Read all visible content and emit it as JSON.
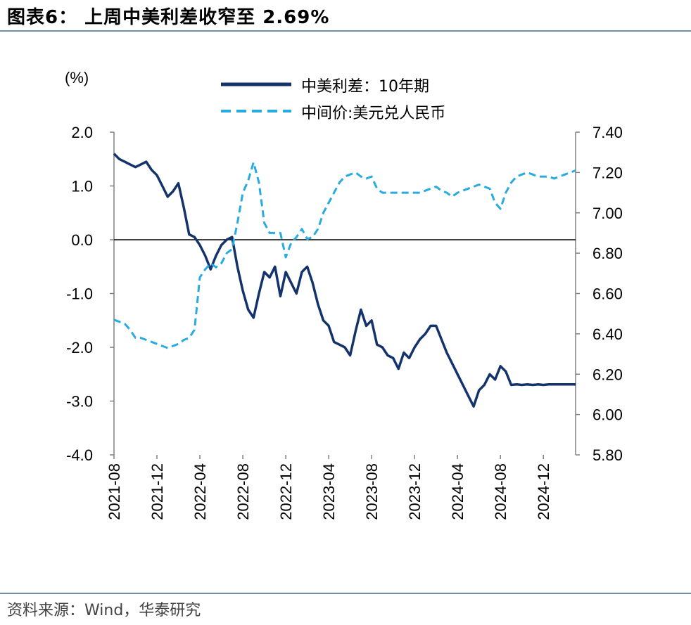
{
  "header": {
    "title": "图表6：  上周中美利差收窄至 2.69%"
  },
  "footer": {
    "source": "资料来源：Wind，华泰研究"
  },
  "chart_data": {
    "type": "line",
    "title": "上周中美利差收窄至 2.69%",
    "left_axis": {
      "unit_label": "(%)",
      "ylim": [
        -4.0,
        2.0
      ],
      "ticks": [
        "2.0",
        "1.0",
        "0.0",
        "-1.0",
        "-2.0",
        "-3.0",
        "-4.0"
      ],
      "tick_values": [
        2.0,
        1.0,
        0.0,
        -1.0,
        -2.0,
        -3.0,
        -4.0
      ]
    },
    "right_axis": {
      "ylim": [
        5.8,
        7.4
      ],
      "ticks": [
        "7.40",
        "7.20",
        "7.00",
        "6.80",
        "6.60",
        "6.40",
        "6.20",
        "6.00",
        "5.80"
      ],
      "tick_values": [
        7.4,
        7.2,
        7.0,
        6.8,
        6.6,
        6.4,
        6.2,
        6.0,
        5.8
      ]
    },
    "x_axis": {
      "range_months": [
        0,
        43
      ],
      "ticks": [
        "2021-08",
        "2021-12",
        "2022-04",
        "2022-08",
        "2022-12",
        "2023-04",
        "2023-08",
        "2023-12",
        "2024-04",
        "2024-08",
        "2024-12"
      ],
      "tick_months": [
        0,
        4,
        8,
        12,
        16,
        20,
        24,
        28,
        32,
        36,
        40
      ]
    },
    "legend": {
      "placement": "top-center",
      "items": [
        "中美利差：10年期",
        "中间价:美元兑人民币"
      ]
    },
    "series": [
      {
        "name": "中美利差：10年期",
        "axis": "left",
        "color": "#15336b",
        "style": "solid",
        "x": [
          0,
          0.5,
          1,
          1.5,
          2,
          2.5,
          3,
          3.5,
          4,
          4.5,
          5,
          5.5,
          6,
          6.5,
          7,
          7.5,
          8,
          8.5,
          9,
          9.5,
          10,
          10.5,
          11,
          11.5,
          12,
          12.5,
          13,
          13.5,
          14,
          14.5,
          15,
          15.5,
          16,
          16.5,
          17,
          17.5,
          18,
          18.5,
          19,
          19.5,
          20,
          20.5,
          21,
          21.5,
          22,
          22.5,
          23,
          23.5,
          24,
          24.5,
          25,
          25.5,
          26,
          26.5,
          27,
          27.5,
          28,
          28.5,
          29,
          29.5,
          30,
          30.5,
          31,
          31.5,
          32,
          32.5,
          33,
          33.5,
          34,
          34.5,
          35,
          35.5,
          36,
          36.5,
          37,
          37.5,
          38,
          38.5,
          39,
          39.5,
          40,
          40.5,
          41,
          41.5,
          42,
          42.5,
          43
        ],
        "values": [
          1.6,
          1.5,
          1.45,
          1.4,
          1.35,
          1.4,
          1.45,
          1.3,
          1.2,
          1.0,
          0.8,
          0.9,
          1.05,
          0.6,
          0.1,
          0.05,
          -0.1,
          -0.3,
          -0.55,
          -0.3,
          -0.1,
          0.0,
          0.05,
          -0.5,
          -0.95,
          -1.3,
          -1.45,
          -1.0,
          -0.6,
          -0.7,
          -0.5,
          -1.05,
          -0.6,
          -0.8,
          -1.0,
          -0.6,
          -0.5,
          -0.8,
          -1.2,
          -1.5,
          -1.6,
          -1.9,
          -1.95,
          -2.0,
          -2.15,
          -1.7,
          -1.3,
          -1.6,
          -1.5,
          -1.95,
          -2.0,
          -2.15,
          -2.2,
          -2.4,
          -2.1,
          -2.2,
          -2.0,
          -1.85,
          -1.75,
          -1.6,
          -1.6,
          -1.85,
          -2.1,
          -2.3,
          -2.5,
          -2.7,
          -2.9,
          -3.1,
          -2.8,
          -2.7,
          -2.5,
          -2.6,
          -2.35,
          -2.45,
          -2.7,
          -2.69,
          -2.7,
          -2.69,
          -2.7,
          -2.69,
          -2.7,
          -2.69,
          -2.69,
          -2.69,
          -2.69,
          -2.69,
          -2.69
        ]
      },
      {
        "name": "中间价:美元兑人民币",
        "axis": "right",
        "color": "#29abe2",
        "style": "dashed",
        "x": [
          0,
          0.5,
          1,
          1.5,
          2,
          2.5,
          3,
          3.5,
          4,
          4.5,
          5,
          5.5,
          6,
          6.5,
          7,
          7.5,
          8,
          8.5,
          9,
          9.5,
          10,
          10.5,
          11,
          11.5,
          12,
          12.5,
          13,
          13.5,
          14,
          14.5,
          15,
          15.5,
          16,
          16.5,
          17,
          17.5,
          18,
          18.5,
          19,
          19.5,
          20,
          20.5,
          21,
          21.5,
          22,
          22.5,
          23,
          23.5,
          24,
          24.5,
          25,
          25.5,
          26,
          26.5,
          27,
          27.5,
          28,
          28.5,
          29,
          29.5,
          30,
          30.5,
          31,
          31.5,
          32,
          32.5,
          33,
          33.5,
          34,
          34.5,
          35,
          35.5,
          36,
          36.5,
          37,
          37.5,
          38,
          38.5,
          39,
          39.5,
          40,
          40.5,
          41,
          41.5,
          42,
          42.5,
          43
        ],
        "values": [
          6.47,
          6.46,
          6.45,
          6.42,
          6.38,
          6.38,
          6.37,
          6.36,
          6.35,
          6.34,
          6.33,
          6.34,
          6.35,
          6.37,
          6.38,
          6.42,
          6.68,
          6.72,
          6.75,
          6.73,
          6.75,
          6.8,
          6.82,
          6.95,
          7.1,
          7.16,
          7.25,
          7.15,
          6.95,
          6.9,
          6.9,
          6.9,
          6.78,
          6.85,
          6.88,
          6.92,
          6.87,
          6.88,
          6.92,
          7.0,
          7.05,
          7.1,
          7.15,
          7.18,
          7.19,
          7.2,
          7.18,
          7.17,
          7.18,
          7.12,
          7.1,
          7.1,
          7.1,
          7.1,
          7.1,
          7.1,
          7.1,
          7.1,
          7.11,
          7.12,
          7.13,
          7.11,
          7.1,
          7.08,
          7.1,
          7.11,
          7.12,
          7.13,
          7.14,
          7.13,
          7.12,
          7.05,
          7.02,
          7.1,
          7.15,
          7.18,
          7.19,
          7.2,
          7.19,
          7.18,
          7.18,
          7.18,
          7.17,
          7.18,
          7.19,
          7.2,
          7.21
        ]
      }
    ]
  }
}
